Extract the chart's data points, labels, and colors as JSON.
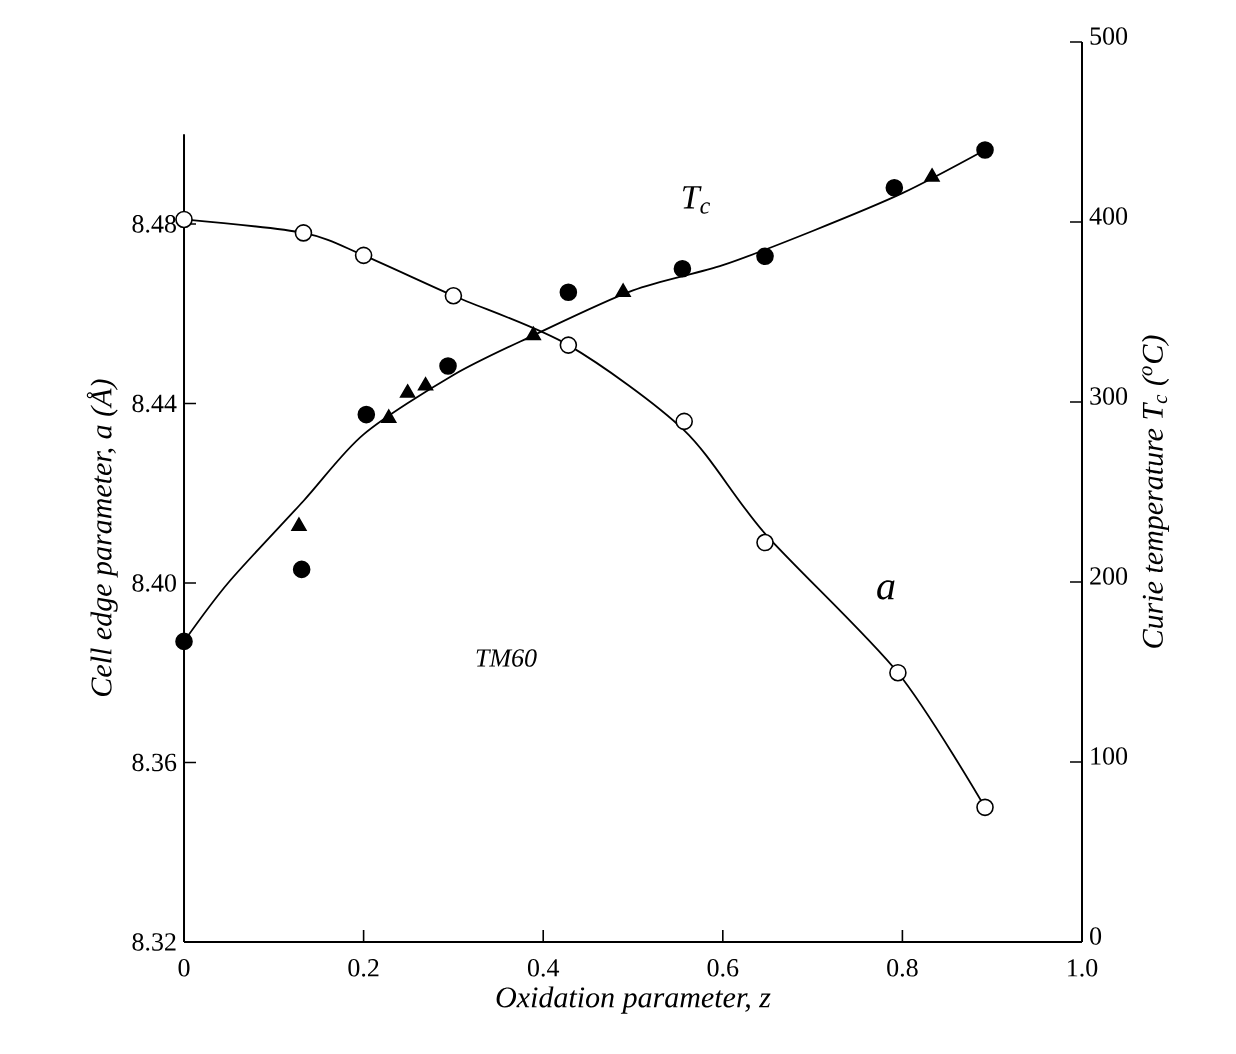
{
  "chart_data": {
    "type": "scatter",
    "xlabel": "Oxidation parameter, z",
    "ylabel": "Cell edge parameter, a (Å)",
    "y2label": "Curie temperature T$_{c}$ ($^{o}$C)",
    "annotations": [
      "T$_{c}$",
      "a",
      "TM60"
    ],
    "xlim": [
      0,
      1.0
    ],
    "xticks": [
      0,
      0.2,
      0.4,
      0.6,
      0.8,
      {
        "value": 1.0,
        "label": "1.0"
      }
    ],
    "ylim": [
      8.32,
      8.5
    ],
    "yticks": [
      8.32,
      8.36,
      {
        "value": 8.4,
        "label": "8.40"
      },
      8.44,
      8.48
    ],
    "y2lim": [
      0,
      500
    ],
    "y2ticks": [
      0,
      100,
      200,
      300,
      400,
      500
    ],
    "grid": false,
    "line_style": "solid",
    "series": [
      {
        "type": "line",
        "marker": "none",
        "color": "#000000",
        "x": [
          0,
          0.133,
          0.2,
          0.3,
          0.428,
          0.557,
          0.647,
          0.795,
          0.892
        ],
        "values": [
          8.481,
          8.478,
          8.473,
          8.464,
          8.453,
          8.434,
          8.411,
          8.38,
          8.35
        ]
      },
      {
        "type": "line",
        "marker": "none",
        "color": "#000000",
        "axis": "y2",
        "x": [
          0,
          0.05,
          0.133,
          0.2,
          0.3,
          0.389,
          0.5,
          0.6,
          0.7,
          0.8,
          0.892
        ],
        "values": [
          167,
          200,
          245,
          282,
          315,
          337,
          362,
          376,
          395,
          416,
          440
        ]
      },
      {
        "type": "scatter",
        "marker": "circle",
        "color": "#ffffff",
        "x": [
          0,
          0.133,
          0.2,
          0.3,
          0.428,
          0.557,
          0.647,
          0.795,
          0.892
        ],
        "values": [
          8.481,
          8.478,
          8.473,
          8.464,
          8.453,
          8.436,
          8.409,
          8.38,
          8.35
        ]
      },
      {
        "type": "scatter",
        "marker": "circle",
        "color": "#000000",
        "axis": "y2",
        "x": [
          0,
          0.131,
          0.203,
          0.294,
          0.428,
          0.555,
          0.647,
          0.791,
          0.892
        ],
        "values": [
          167,
          207,
          293,
          320,
          361,
          374,
          381,
          419,
          440
        ]
      },
      {
        "type": "scatter",
        "marker": "triangle",
        "color": "#000000",
        "axis": "y2",
        "x": [
          0.128,
          0.228,
          0.249,
          0.269,
          0.389,
          0.489,
          0.833
        ],
        "values": [
          231,
          291,
          305,
          309,
          337,
          361,
          425
        ]
      }
    ]
  }
}
